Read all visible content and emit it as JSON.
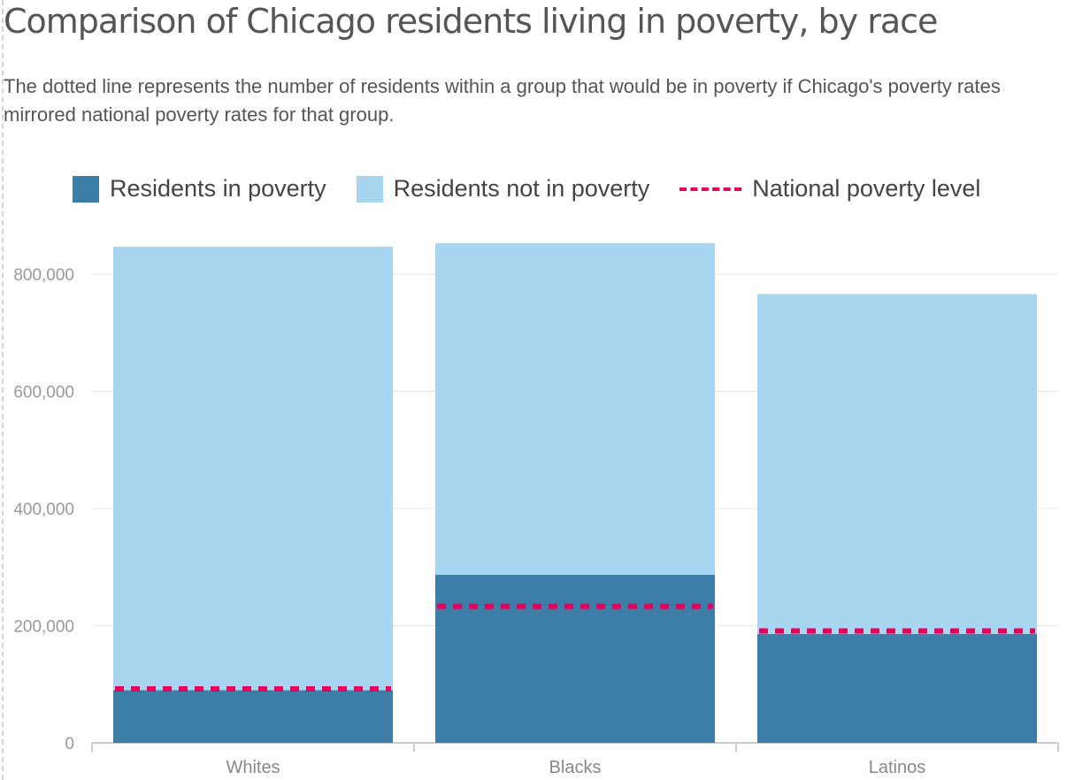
{
  "title": "Comparison of Chicago residents living in poverty, by race",
  "subtitle": "The dotted line represents the number of residents within a group that would be in poverty if Chicago's poverty rates mirrored national poverty rates for that group.",
  "legend": [
    {
      "label": "Residents in poverty",
      "color": "#3d7ea9",
      "kind": "swatch"
    },
    {
      "label": "Residents not in poverty",
      "color": "#a8d5ef",
      "kind": "swatch"
    },
    {
      "label": "National poverty level",
      "color": "#e8005a",
      "kind": "dashed-line"
    }
  ],
  "chart_data": {
    "type": "bar",
    "stacked": true,
    "categories": [
      "Whites",
      "Blacks",
      "Latinos"
    ],
    "series": [
      {
        "name": "Residents in poverty",
        "color": "#3d7ea9",
        "values": [
          90000,
          287000,
          186000
        ]
      },
      {
        "name": "Residents not in poverty",
        "color": "#a8d5ef",
        "values": [
          757000,
          566000,
          580000
        ]
      }
    ],
    "reference_line": {
      "name": "National poverty level",
      "color": "#e8005a",
      "style": "dashed",
      "values": [
        92000,
        233000,
        191000
      ]
    },
    "yticks": [
      0,
      200000,
      400000,
      600000,
      800000
    ],
    "ytick_labels": [
      "0",
      "200,000",
      "400,000",
      "600,000",
      "800,000"
    ],
    "ylim": [
      0,
      880000
    ],
    "grid": true,
    "legend_position": "top"
  }
}
